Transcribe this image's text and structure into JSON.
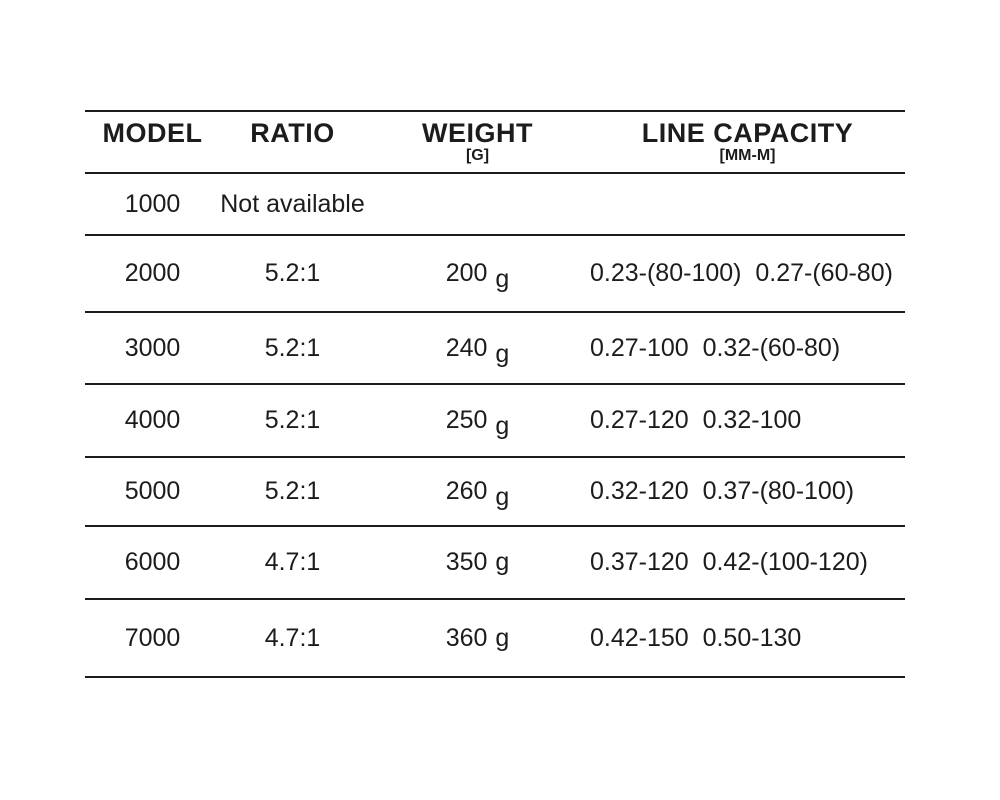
{
  "chart_data": {
    "type": "table",
    "title": "",
    "columns": [
      {
        "label": "MODEL",
        "sub": ""
      },
      {
        "label": "RATIO",
        "sub": ""
      },
      {
        "label": "WEIGHT",
        "sub": "[G]"
      },
      {
        "label": "LINE CAPACITY",
        "sub": "[MM-M]"
      }
    ],
    "rows": [
      {
        "model": "1000",
        "ratio": "Not available",
        "weight": "",
        "unit": "",
        "unit_lowered": false,
        "capacity": ""
      },
      {
        "model": "2000",
        "ratio": "5.2:1",
        "weight": "200",
        "unit": "g",
        "unit_lowered": true,
        "capacity": "0.23-(80-100)  0.27-(60-80)"
      },
      {
        "model": "3000",
        "ratio": "5.2:1",
        "weight": "240",
        "unit": "g",
        "unit_lowered": true,
        "capacity": "0.27-100  0.32-(60-80)"
      },
      {
        "model": "4000",
        "ratio": "5.2:1",
        "weight": "250",
        "unit": "g",
        "unit_lowered": true,
        "capacity": "0.27-120  0.32-100"
      },
      {
        "model": "5000",
        "ratio": "5.2:1",
        "weight": "260",
        "unit": "g",
        "unit_lowered": true,
        "capacity": "0.32-120  0.37-(80-100)"
      },
      {
        "model": "6000",
        "ratio": "4.7:1",
        "weight": "350",
        "unit": "g",
        "unit_lowered": false,
        "capacity": "0.37-120  0.42-(100-120)"
      },
      {
        "model": "7000",
        "ratio": "4.7:1",
        "weight": "360",
        "unit": "g",
        "unit_lowered": false,
        "capacity": "0.42-150  0.50-130"
      }
    ],
    "colors": {
      "text": "#1c1c1c",
      "background": "#ffffff",
      "rule_lines": "#1c1c1c"
    },
    "layout": {
      "grid": "horizontal-rules-only",
      "legend": "none"
    }
  }
}
